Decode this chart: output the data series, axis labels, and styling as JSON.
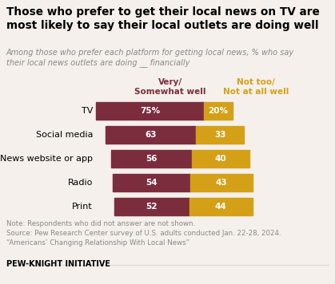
{
  "title": "Those who prefer to get their local news on TV are\nmost likely to say their local outlets are doing well",
  "subtitle": "Among those who prefer each platform for getting local news, % who say\ntheir local news outlets are doing __ financially",
  "categories": [
    "TV",
    "Social media",
    "News website or app",
    "Radio",
    "Print"
  ],
  "very_well": [
    75,
    63,
    56,
    54,
    52
  ],
  "not_too_well": [
    20,
    33,
    40,
    43,
    44
  ],
  "color_very_well": "#7B2D3E",
  "color_not_too_well": "#D4A017",
  "legend_very_well": "Very/\nSomewhat well",
  "legend_not_too_well": "Not too/\nNot at all well",
  "note": "Note: Respondents who did not answer are not shown.\nSource: Pew Research Center survey of U.S. adults conducted Jan. 22-28, 2024.\n“Americans’ Changing Relationship With Local News”",
  "footer": "PEW-KNIGHT INITIATIVE",
  "background_color": "#F5F0EB",
  "bar_scale": 1.8,
  "bar_offsets": [
    0,
    12,
    19,
    21,
    23
  ]
}
